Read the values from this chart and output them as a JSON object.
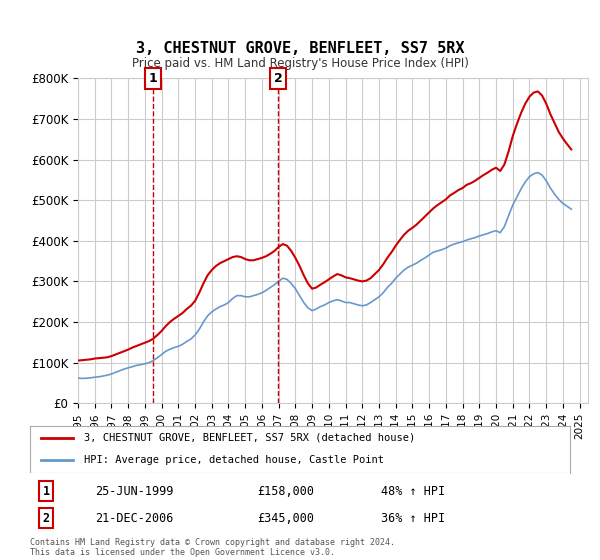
{
  "title": "3, CHESTNUT GROVE, BENFLEET, SS7 5RX",
  "subtitle": "Price paid vs. HM Land Registry's House Price Index (HPI)",
  "background_color": "#ffffff",
  "grid_color": "#cccccc",
  "ylim": [
    0,
    800000
  ],
  "yticks": [
    0,
    100000,
    200000,
    300000,
    400000,
    500000,
    600000,
    700000,
    800000
  ],
  "ytick_labels": [
    "£0",
    "£100K",
    "£200K",
    "£300K",
    "£400K",
    "£500K",
    "£600K",
    "£700K",
    "£800K"
  ],
  "xmin": 1995.0,
  "xmax": 2025.5,
  "red_line_color": "#cc0000",
  "blue_line_color": "#6699cc",
  "vline_color": "#cc0000",
  "transaction1_x": 1999.48,
  "transaction1_y": 158000,
  "transaction1_label": "1",
  "transaction1_date": "25-JUN-1999",
  "transaction1_price": "£158,000",
  "transaction1_hpi": "48% ↑ HPI",
  "transaction2_x": 2006.97,
  "transaction2_y": 345000,
  "transaction2_label": "2",
  "transaction2_date": "21-DEC-2006",
  "transaction2_price": "£345,000",
  "transaction2_hpi": "36% ↑ HPI",
  "legend_label_red": "3, CHESTNUT GROVE, BENFLEET, SS7 5RX (detached house)",
  "legend_label_blue": "HPI: Average price, detached house, Castle Point",
  "footer": "Contains HM Land Registry data © Crown copyright and database right 2024.\nThis data is licensed under the Open Government Licence v3.0.",
  "hpi_data_x": [
    1995.0,
    1995.25,
    1995.5,
    1995.75,
    1996.0,
    1996.25,
    1996.5,
    1996.75,
    1997.0,
    1997.25,
    1997.5,
    1997.75,
    1998.0,
    1998.25,
    1998.5,
    1998.75,
    1999.0,
    1999.25,
    1999.5,
    1999.75,
    2000.0,
    2000.25,
    2000.5,
    2000.75,
    2001.0,
    2001.25,
    2001.5,
    2001.75,
    2002.0,
    2002.25,
    2002.5,
    2002.75,
    2003.0,
    2003.25,
    2003.5,
    2003.75,
    2004.0,
    2004.25,
    2004.5,
    2004.75,
    2005.0,
    2005.25,
    2005.5,
    2005.75,
    2006.0,
    2006.25,
    2006.5,
    2006.75,
    2007.0,
    2007.25,
    2007.5,
    2007.75,
    2008.0,
    2008.25,
    2008.5,
    2008.75,
    2009.0,
    2009.25,
    2009.5,
    2009.75,
    2010.0,
    2010.25,
    2010.5,
    2010.75,
    2011.0,
    2011.25,
    2011.5,
    2011.75,
    2012.0,
    2012.25,
    2012.5,
    2012.75,
    2013.0,
    2013.25,
    2013.5,
    2013.75,
    2014.0,
    2014.25,
    2014.5,
    2014.75,
    2015.0,
    2015.25,
    2015.5,
    2015.75,
    2016.0,
    2016.25,
    2016.5,
    2016.75,
    2017.0,
    2017.25,
    2017.5,
    2017.75,
    2018.0,
    2018.25,
    2018.5,
    2018.75,
    2019.0,
    2019.25,
    2019.5,
    2019.75,
    2020.0,
    2020.25,
    2020.5,
    2020.75,
    2021.0,
    2021.25,
    2021.5,
    2021.75,
    2022.0,
    2022.25,
    2022.5,
    2022.75,
    2023.0,
    2023.25,
    2023.5,
    2023.75,
    2024.0,
    2024.25,
    2024.5
  ],
  "hpi_data_y": [
    62000,
    61000,
    61500,
    62500,
    64000,
    65000,
    67000,
    69000,
    72000,
    76000,
    80000,
    84000,
    87000,
    90000,
    93000,
    95000,
    97000,
    100000,
    105000,
    112000,
    120000,
    128000,
    133000,
    137000,
    140000,
    145000,
    152000,
    158000,
    168000,
    182000,
    200000,
    215000,
    225000,
    232000,
    238000,
    242000,
    248000,
    258000,
    265000,
    265000,
    262000,
    262000,
    265000,
    268000,
    272000,
    278000,
    285000,
    292000,
    300000,
    308000,
    305000,
    295000,
    282000,
    265000,
    248000,
    235000,
    228000,
    232000,
    238000,
    242000,
    248000,
    252000,
    255000,
    252000,
    248000,
    248000,
    245000,
    242000,
    240000,
    242000,
    248000,
    255000,
    262000,
    272000,
    285000,
    295000,
    308000,
    318000,
    328000,
    335000,
    340000,
    345000,
    352000,
    358000,
    365000,
    372000,
    375000,
    378000,
    382000,
    388000,
    392000,
    395000,
    398000,
    402000,
    405000,
    408000,
    412000,
    415000,
    418000,
    422000,
    425000,
    420000,
    435000,
    462000,
    488000,
    508000,
    528000,
    545000,
    558000,
    565000,
    568000,
    562000,
    548000,
    530000,
    515000,
    502000,
    492000,
    485000,
    478000
  ],
  "price_data_x": [
    1995.0,
    1995.25,
    1995.5,
    1995.75,
    1996.0,
    1996.25,
    1996.5,
    1996.75,
    1997.0,
    1997.25,
    1997.5,
    1997.75,
    1998.0,
    1998.25,
    1998.5,
    1998.75,
    1999.0,
    1999.25,
    1999.5,
    1999.75,
    2000.0,
    2000.25,
    2000.5,
    2000.75,
    2001.0,
    2001.25,
    2001.5,
    2001.75,
    2002.0,
    2002.25,
    2002.5,
    2002.75,
    2003.0,
    2003.25,
    2003.5,
    2003.75,
    2004.0,
    2004.25,
    2004.5,
    2004.75,
    2005.0,
    2005.25,
    2005.5,
    2005.75,
    2006.0,
    2006.25,
    2006.5,
    2006.75,
    2007.0,
    2007.25,
    2007.5,
    2007.75,
    2008.0,
    2008.25,
    2008.5,
    2008.75,
    2009.0,
    2009.25,
    2009.5,
    2009.75,
    2010.0,
    2010.25,
    2010.5,
    2010.75,
    2011.0,
    2011.25,
    2011.5,
    2011.75,
    2012.0,
    2012.25,
    2012.5,
    2012.75,
    2013.0,
    2013.25,
    2013.5,
    2013.75,
    2014.0,
    2014.25,
    2014.5,
    2014.75,
    2015.0,
    2015.25,
    2015.5,
    2015.75,
    2016.0,
    2016.25,
    2016.5,
    2016.75,
    2017.0,
    2017.25,
    2017.5,
    2017.75,
    2018.0,
    2018.25,
    2018.5,
    2018.75,
    2019.0,
    2019.25,
    2019.5,
    2019.75,
    2020.0,
    2020.25,
    2020.5,
    2020.75,
    2021.0,
    2021.25,
    2021.5,
    2021.75,
    2022.0,
    2022.25,
    2022.5,
    2022.75,
    2023.0,
    2023.25,
    2023.5,
    2023.75,
    2024.0,
    2024.25,
    2024.5
  ],
  "price_data_y": [
    105000,
    106000,
    107000,
    108000,
    110000,
    111000,
    112000,
    113000,
    116000,
    120000,
    124000,
    128000,
    132000,
    137000,
    141000,
    145000,
    149000,
    153000,
    159000,
    168000,
    178000,
    190000,
    200000,
    208000,
    215000,
    222000,
    232000,
    240000,
    252000,
    272000,
    295000,
    315000,
    328000,
    338000,
    345000,
    350000,
    355000,
    360000,
    362000,
    360000,
    355000,
    352000,
    352000,
    355000,
    358000,
    362000,
    368000,
    375000,
    385000,
    392000,
    388000,
    375000,
    358000,
    338000,
    315000,
    295000,
    282000,
    285000,
    292000,
    298000,
    305000,
    312000,
    318000,
    315000,
    310000,
    308000,
    305000,
    302000,
    300000,
    302000,
    308000,
    318000,
    328000,
    342000,
    358000,
    372000,
    388000,
    402000,
    415000,
    425000,
    432000,
    440000,
    450000,
    460000,
    470000,
    480000,
    488000,
    495000,
    502000,
    512000,
    518000,
    525000,
    530000,
    538000,
    542000,
    548000,
    555000,
    562000,
    568000,
    575000,
    580000,
    572000,
    588000,
    620000,
    658000,
    688000,
    715000,
    738000,
    755000,
    765000,
    768000,
    758000,
    738000,
    712000,
    690000,
    668000,
    652000,
    638000,
    625000
  ]
}
